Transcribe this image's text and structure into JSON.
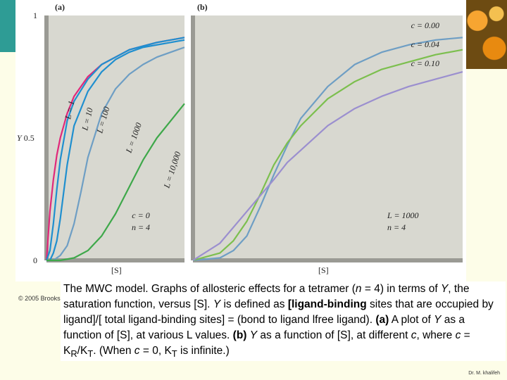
{
  "copyright": "© 2005 Brooks",
  "caption": {
    "p1": "The MWC model. Graphs of allosteric effects for a tetramer (",
    "n": "n",
    "p2": " = 4) in terms of ",
    "Y1": "Y",
    "p3": ", the saturation function, versus [S]. ",
    "Y2": "Y",
    "p4": " is defined as ",
    "bold1": "[ligand-binding",
    "p5": " sites that are occupied by ligand]/[ total ligand-binding sites] = (bond to ligand lfree ligand). ",
    "a": "(a)",
    "p6": " A plot of ",
    "Y3": "Y",
    "p7": " as a function of [S], at various L values. ",
    "b": "(b)",
    "p8": " ",
    "Y4": "Y",
    "p9": " as a function of [S], at different ",
    "c1": "c",
    "p10": ", where ",
    "c2": "c",
    "p11": " = K",
    "sub1": "R",
    "p12": "/K",
    "sub2": "T",
    "p13": ". (When ",
    "c3": "c",
    "p14": " = 0, K",
    "sub3": "T",
    "p15": " is infinite.)"
  },
  "credit": "Dr. M. khalifeh",
  "chart_data": [
    {
      "type": "line",
      "panel_label": "(a)",
      "xlabel": "[S]",
      "ylabel": "Y",
      "yticks": [
        "1",
        "0.5",
        "0"
      ],
      "ylim": [
        0,
        1
      ],
      "xlim": [
        0,
        10
      ],
      "grid": false,
      "legend_annotation": [
        "c = 0",
        "n = 4"
      ],
      "colors": [
        "#e0287a",
        "#1f8fcf",
        "#1f8fcf",
        "#6e9ec4",
        "#3ea84a"
      ],
      "series": [
        {
          "name": "L = 1",
          "x": [
            0,
            0.25,
            0.5,
            0.75,
            1,
            1.5,
            2,
            3,
            4,
            5,
            6,
            7,
            8,
            9,
            10
          ],
          "y": [
            0,
            0.2,
            0.33,
            0.43,
            0.5,
            0.6,
            0.67,
            0.75,
            0.8,
            0.83,
            0.86,
            0.875,
            0.89,
            0.9,
            0.91
          ]
        },
        {
          "name": "L = 10",
          "x": [
            0,
            0.25,
            0.5,
            0.75,
            1,
            1.5,
            2,
            3,
            4,
            5,
            6,
            7,
            8,
            9,
            10
          ],
          "y": [
            0,
            0.04,
            0.15,
            0.29,
            0.41,
            0.57,
            0.65,
            0.74,
            0.8,
            0.83,
            0.86,
            0.875,
            0.89,
            0.9,
            0.91
          ]
        },
        {
          "name": "L = 100",
          "x": [
            0,
            0.25,
            0.5,
            0.75,
            1,
            1.5,
            2,
            3,
            4,
            5,
            6,
            7,
            8,
            9,
            10
          ],
          "y": [
            0,
            0.0,
            0.03,
            0.08,
            0.17,
            0.39,
            0.55,
            0.69,
            0.77,
            0.82,
            0.85,
            0.87,
            0.88,
            0.89,
            0.9
          ]
        },
        {
          "name": "L = 1000",
          "x": [
            0,
            0.5,
            1,
            1.5,
            2,
            2.5,
            3,
            4,
            5,
            6,
            7,
            8,
            9,
            10
          ],
          "y": [
            0,
            0.0,
            0.02,
            0.06,
            0.15,
            0.28,
            0.42,
            0.6,
            0.7,
            0.76,
            0.8,
            0.83,
            0.85,
            0.87
          ]
        },
        {
          "name": "L = 10,000",
          "x": [
            0,
            1,
            2,
            3,
            4,
            5,
            6,
            7,
            8,
            9,
            10
          ],
          "y": [
            0,
            0.0,
            0.01,
            0.04,
            0.1,
            0.19,
            0.3,
            0.41,
            0.5,
            0.57,
            0.64
          ]
        }
      ]
    },
    {
      "type": "line",
      "panel_label": "(b)",
      "xlabel": "[S]",
      "ylim": [
        0,
        1
      ],
      "xlim": [
        0,
        10
      ],
      "grid": false,
      "legend_annotation": [
        "L = 1000",
        "n = 4"
      ],
      "colors": [
        "#6e9ec4",
        "#7cbf4e",
        "#9b8fcf"
      ],
      "series": [
        {
          "name": "c = 0.00",
          "x": [
            0,
            1,
            1.5,
            2,
            2.5,
            3,
            3.5,
            4,
            5,
            6,
            7,
            8,
            9,
            10
          ],
          "y": [
            0,
            0.01,
            0.04,
            0.1,
            0.22,
            0.35,
            0.47,
            0.58,
            0.71,
            0.8,
            0.85,
            0.88,
            0.9,
            0.91
          ]
        },
        {
          "name": "c = 0.04",
          "x": [
            0,
            1,
            1.5,
            2,
            2.5,
            3,
            3.5,
            4,
            5,
            6,
            7,
            8,
            9,
            10
          ],
          "y": [
            0,
            0.03,
            0.08,
            0.16,
            0.27,
            0.39,
            0.48,
            0.55,
            0.66,
            0.73,
            0.78,
            0.81,
            0.84,
            0.86
          ]
        },
        {
          "name": "c = 0.10",
          "x": [
            0,
            1,
            2,
            3,
            3.5,
            4,
            5,
            6,
            7,
            8,
            9,
            10
          ],
          "y": [
            0,
            0.07,
            0.2,
            0.33,
            0.4,
            0.45,
            0.55,
            0.62,
            0.67,
            0.71,
            0.74,
            0.77
          ]
        }
      ]
    }
  ]
}
